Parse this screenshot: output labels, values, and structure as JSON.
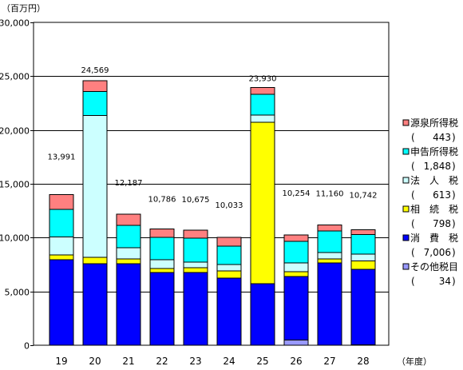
{
  "chart_data": {
    "type": "bar",
    "stacked": true,
    "ylabel": "（百万円）",
    "xlabel": "（年度）",
    "categories": [
      "19",
      "20",
      "21",
      "22",
      "23",
      "24",
      "25",
      "26",
      "27",
      "28"
    ],
    "ylim": [
      0,
      30000
    ],
    "y_ticks": [
      0,
      5000,
      10000,
      15000,
      20000,
      25000,
      30000
    ],
    "y_tick_labels": [
      "0",
      "5,000",
      "10,000",
      "15,000",
      "20,000",
      "25,000",
      "30,000"
    ],
    "grid": true,
    "legend_position": "right",
    "total_labels": [
      "13,991",
      "24,569",
      "12,187",
      "10,786",
      "10,675",
      "10,033",
      "23,930",
      "10,254",
      "11,160",
      "10,742"
    ],
    "series": [
      {
        "name": "源泉所得税",
        "legend_value": "443",
        "color": "#FF8080",
        "values": [
          1351,
          979,
          1047,
          756,
          725,
          833,
          610,
          614,
          540,
          443
        ]
      },
      {
        "name": "申告所得税",
        "legend_value": "1,848",
        "color": "#00FFFF",
        "values": [
          2560,
          2230,
          2080,
          2080,
          2230,
          1700,
          1930,
          2000,
          2000,
          1848
        ]
      },
      {
        "name": "法　人　税",
        "legend_value": "613",
        "color": "#CCFFFF",
        "values": [
          1700,
          13200,
          1040,
          820,
          520,
          600,
          670,
          800,
          600,
          613
        ]
      },
      {
        "name": "相　続　税",
        "legend_value": "798",
        "color": "#FFFF00",
        "values": [
          430,
          600,
          450,
          370,
          450,
          660,
          15000,
          450,
          370,
          798
        ]
      },
      {
        "name": "消　費　税",
        "legend_value": "7,006",
        "color": "#0000FF",
        "values": [
          7950,
          7560,
          7570,
          6760,
          6750,
          6240,
          5720,
          5890,
          7650,
          7006
        ]
      },
      {
        "name": "その他税目",
        "legend_value": "34",
        "color": "#9999FF",
        "values": [
          0,
          0,
          0,
          0,
          0,
          0,
          0,
          500,
          0,
          34
        ]
      }
    ]
  },
  "legend": {
    "paren_open": "(",
    "paren_close": ")"
  }
}
